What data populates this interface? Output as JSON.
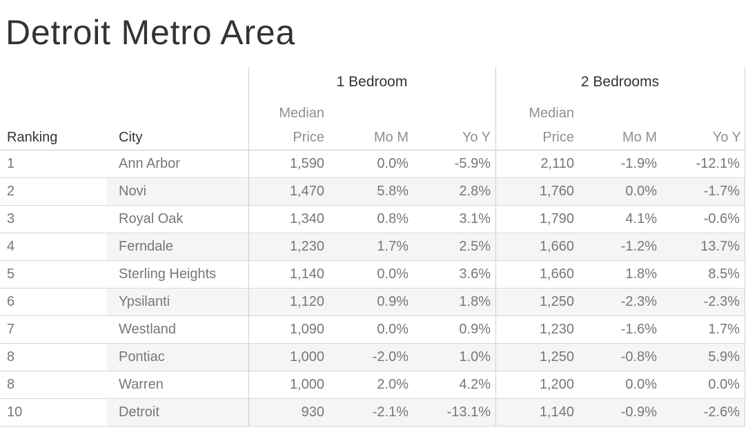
{
  "title": "Detroit Metro Area",
  "colors": {
    "title_text": "#333333",
    "header_text": "#333333",
    "subheader_text": "#8f8f8f",
    "data_text": "#767676",
    "row_band": "#f5f5f5",
    "grid_line": "#d7d7d7",
    "divider_line": "#cfcfcf"
  },
  "table": {
    "ranking_header": "Ranking",
    "city_header": "City",
    "sections": [
      {
        "label": "1 Bedroom",
        "price_header_line1": "Median",
        "price_header_line2": "Price",
        "mom_header": "Mo M",
        "yoy_header": "Yo Y"
      },
      {
        "label": "2 Bedrooms",
        "price_header_line1": "Median",
        "price_header_line2": "Price",
        "mom_header": "Mo M",
        "yoy_header": "Yo Y"
      }
    ],
    "rows": [
      {
        "rank": "1",
        "city": "Ann Arbor",
        "b1_price": "1,590",
        "b1_mom": "0.0%",
        "b1_yoy": "-5.9%",
        "b2_price": "2,110",
        "b2_mom": "-1.9%",
        "b2_yoy": "-12.1%"
      },
      {
        "rank": "2",
        "city": "Novi",
        "b1_price": "1,470",
        "b1_mom": "5.8%",
        "b1_yoy": "2.8%",
        "b2_price": "1,760",
        "b2_mom": "0.0%",
        "b2_yoy": "-1.7%"
      },
      {
        "rank": "3",
        "city": "Royal Oak",
        "b1_price": "1,340",
        "b1_mom": "0.8%",
        "b1_yoy": "3.1%",
        "b2_price": "1,790",
        "b2_mom": "4.1%",
        "b2_yoy": "-0.6%"
      },
      {
        "rank": "4",
        "city": "Ferndale",
        "b1_price": "1,230",
        "b1_mom": "1.7%",
        "b1_yoy": "2.5%",
        "b2_price": "1,660",
        "b2_mom": "-1.2%",
        "b2_yoy": "13.7%"
      },
      {
        "rank": "5",
        "city": "Sterling Heights",
        "b1_price": "1,140",
        "b1_mom": "0.0%",
        "b1_yoy": "3.6%",
        "b2_price": "1,660",
        "b2_mom": "1.8%",
        "b2_yoy": "8.5%"
      },
      {
        "rank": "6",
        "city": "Ypsilanti",
        "b1_price": "1,120",
        "b1_mom": "0.9%",
        "b1_yoy": "1.8%",
        "b2_price": "1,250",
        "b2_mom": "-2.3%",
        "b2_yoy": "-2.3%"
      },
      {
        "rank": "7",
        "city": "Westland",
        "b1_price": "1,090",
        "b1_mom": "0.0%",
        "b1_yoy": "0.9%",
        "b2_price": "1,230",
        "b2_mom": "-1.6%",
        "b2_yoy": "1.7%"
      },
      {
        "rank": "8",
        "city": "Pontiac",
        "b1_price": "1,000",
        "b1_mom": "-2.0%",
        "b1_yoy": "1.0%",
        "b2_price": "1,250",
        "b2_mom": "-0.8%",
        "b2_yoy": "5.9%"
      },
      {
        "rank": "8",
        "city": "Warren",
        "b1_price": "1,000",
        "b1_mom": "2.0%",
        "b1_yoy": "4.2%",
        "b2_price": "1,200",
        "b2_mom": "0.0%",
        "b2_yoy": "0.0%"
      },
      {
        "rank": "10",
        "city": "Detroit",
        "b1_price": "930",
        "b1_mom": "-2.1%",
        "b1_yoy": "-13.1%",
        "b2_price": "1,140",
        "b2_mom": "-0.9%",
        "b2_yoy": "-2.6%"
      }
    ]
  },
  "chart_data": {
    "type": "table",
    "title": "Detroit Metro Area",
    "column_groups": [
      "",
      "",
      "1 Bedroom",
      "1 Bedroom",
      "1 Bedroom",
      "2 Bedrooms",
      "2 Bedrooms",
      "2 Bedrooms"
    ],
    "columns": [
      "Ranking",
      "City",
      "Median Price",
      "Mo M",
      "Yo Y",
      "Median Price",
      "Mo M",
      "Yo Y"
    ],
    "rows": [
      [
        "1",
        "Ann Arbor",
        "1,590",
        "0.0%",
        "-5.9%",
        "2,110",
        "-1.9%",
        "-12.1%"
      ],
      [
        "2",
        "Novi",
        "1,470",
        "5.8%",
        "2.8%",
        "1,760",
        "0.0%",
        "-1.7%"
      ],
      [
        "3",
        "Royal Oak",
        "1,340",
        "0.8%",
        "3.1%",
        "1,790",
        "4.1%",
        "-0.6%"
      ],
      [
        "4",
        "Ferndale",
        "1,230",
        "1.7%",
        "2.5%",
        "1,660",
        "-1.2%",
        "13.7%"
      ],
      [
        "5",
        "Sterling Heights",
        "1,140",
        "0.0%",
        "3.6%",
        "1,660",
        "1.8%",
        "8.5%"
      ],
      [
        "6",
        "Ypsilanti",
        "1,120",
        "0.9%",
        "1.8%",
        "1,250",
        "-2.3%",
        "-2.3%"
      ],
      [
        "7",
        "Westland",
        "1,090",
        "0.0%",
        "0.9%",
        "1,230",
        "-1.6%",
        "1.7%"
      ],
      [
        "8",
        "Pontiac",
        "1,000",
        "-2.0%",
        "1.0%",
        "1,250",
        "-0.8%",
        "5.9%"
      ],
      [
        "8",
        "Warren",
        "1,000",
        "2.0%",
        "4.2%",
        "1,200",
        "0.0%",
        "0.0%"
      ],
      [
        "10",
        "Detroit",
        "930",
        "-2.1%",
        "-13.1%",
        "1,140",
        "-0.9%",
        "-2.6%"
      ]
    ],
    "layout": {
      "row_banding": "even rows shaded from City column",
      "numeric_alignment": "right",
      "grid": "horizontal row lines + vertical group dividers"
    }
  }
}
